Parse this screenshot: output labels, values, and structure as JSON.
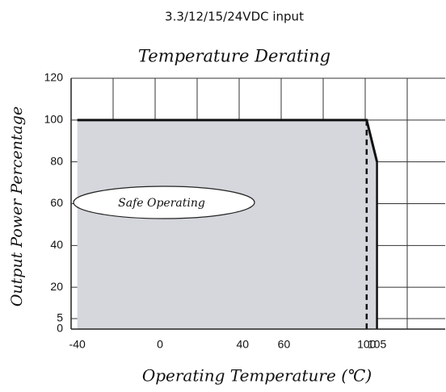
{
  "chart_data": {
    "type": "area",
    "subtitle": "3.3/12/15/24VDC input",
    "title": "Temperature Derating",
    "y_label": "Output Power Percentage",
    "x_label": "Operating Temperature (℃)",
    "annotation": "Safe Operating",
    "x": [
      -40,
      100,
      105
    ],
    "values": [
      100,
      100,
      80
    ],
    "color": "#d5d7dd",
    "line_color": "#111111",
    "xlim": [
      -43,
      138
    ],
    "xticks": [
      -40,
      0,
      40,
      60,
      100,
      105
    ],
    "ylim": [
      0,
      120
    ],
    "yticks": [
      0,
      5,
      20,
      40,
      60,
      80,
      100,
      120
    ],
    "grid": true
  }
}
